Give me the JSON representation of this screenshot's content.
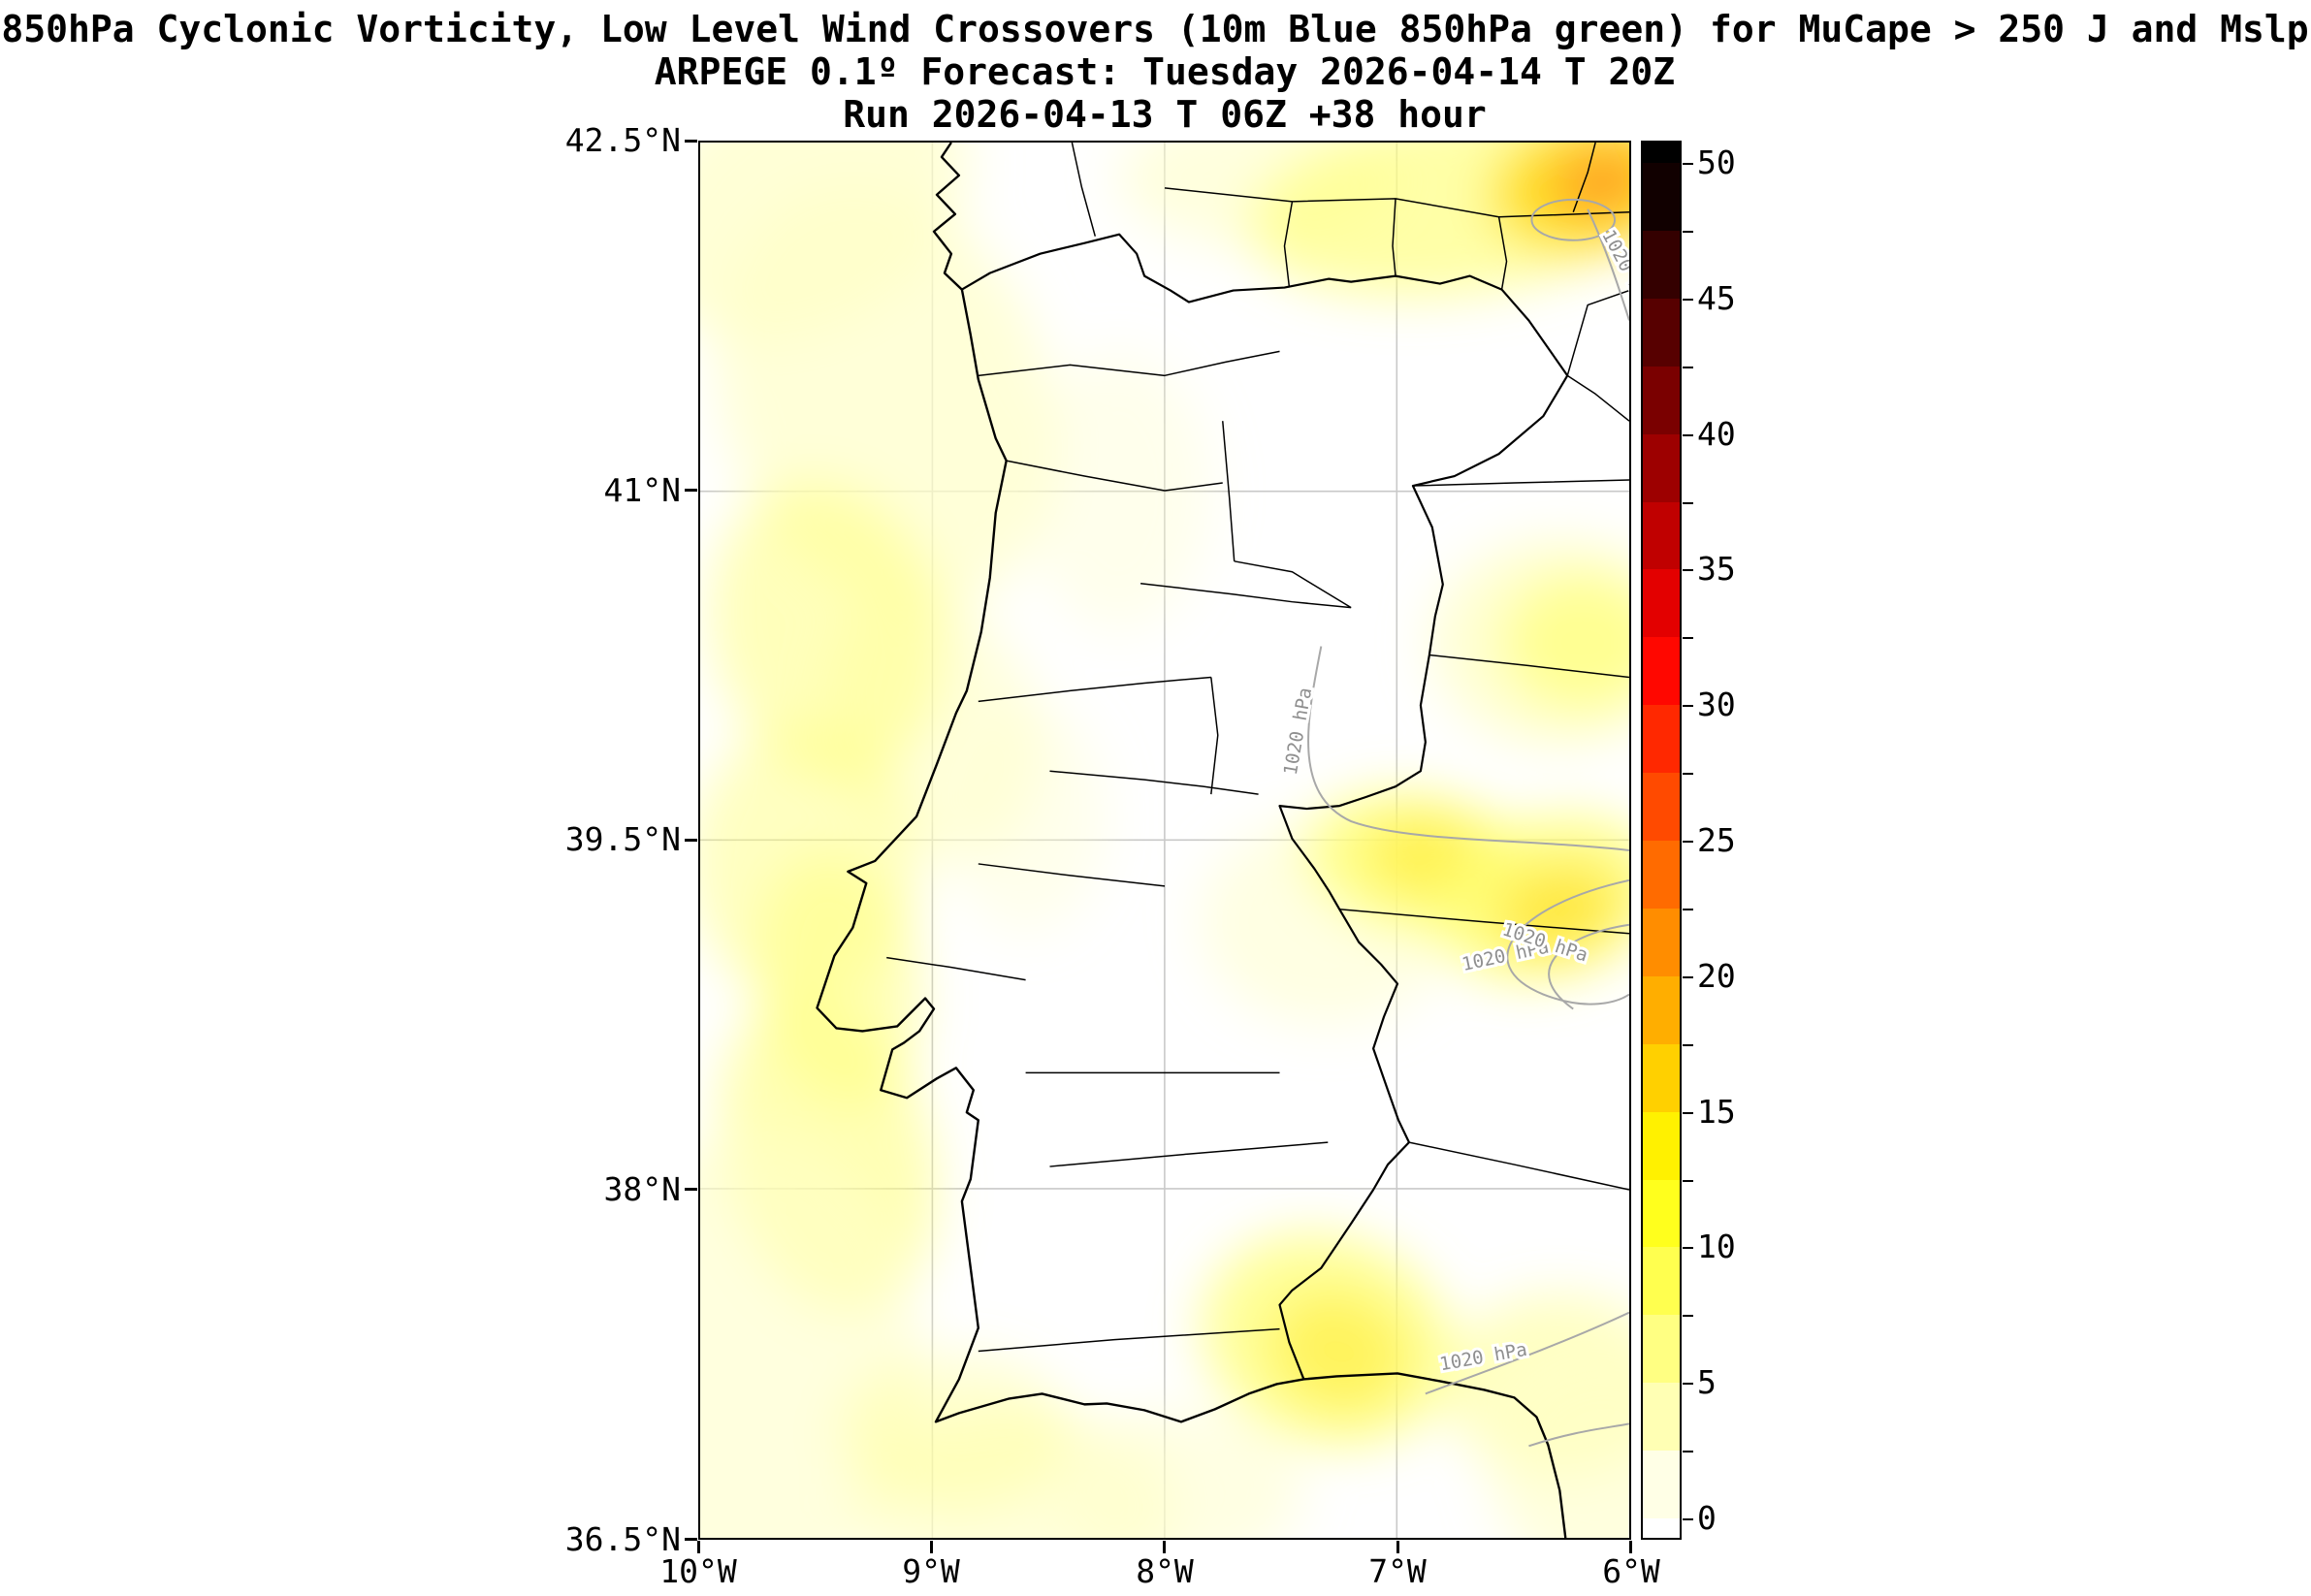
{
  "title": {
    "line1": "850hPa Cyclonic Vorticity, Low Level Wind Crossovers (10m Blue 850hPa green) for MuCape > 250 J and Mslp",
    "line2": "ARPEGE 0.1º Forecast: Tuesday 2026-04-14 T 20Z",
    "line3": "Run 2026-04-13 T 06Z +38 hour"
  },
  "axes": {
    "y_ticks": [
      "42.5°N",
      "41°N",
      "39.5°N",
      "38°N",
      "36.5°N"
    ],
    "x_ticks": [
      "10°W",
      "9°W",
      "8°W",
      "7°W",
      "6°W"
    ]
  },
  "colorbar": {
    "tick_labels": [
      "50",
      "45",
      "40",
      "35",
      "30",
      "25",
      "20",
      "15",
      "10",
      "5",
      "0"
    ],
    "range": [
      0,
      50
    ],
    "band_step": 2.5,
    "over_color": "#000000",
    "under_color": "#ffffff",
    "band_colors_top_to_bottom": [
      "#110000",
      "#340000",
      "#570000",
      "#7a0000",
      "#9d0000",
      "#c00000",
      "#e30000",
      "#ff0700",
      "#ff2800",
      "#ff4a00",
      "#ff6b00",
      "#ff8d00",
      "#ffae00",
      "#ffd000",
      "#fff100",
      "#ffff1d",
      "#ffff4f",
      "#ffff82",
      "#ffffb4",
      "#ffffe6"
    ]
  },
  "contours": {
    "value_hpa": 1020,
    "color": "#a8a8a8",
    "labels": [
      {
        "text": "1020 hPa"
      },
      {
        "text": "1020 hPa"
      },
      {
        "text": "1020 hPa"
      },
      {
        "text": "1020 hPa"
      },
      {
        "text": "1020 hPa"
      }
    ]
  },
  "shading": {
    "palette": {
      "pale": "#ffffc8",
      "yellow": "#ffff78",
      "bright": "#ffee44",
      "gold": "#ffd700",
      "orange": "#ff9a28"
    },
    "blobs": [
      {
        "lon": -9.55,
        "lat": 42.25,
        "rx": 0.75,
        "ry": 0.55,
        "rot": -30,
        "c": "pale",
        "o": 0.75
      },
      {
        "lon": -9.2,
        "lat": 41.4,
        "rx": 0.7,
        "ry": 0.95,
        "rot": -20,
        "c": "pale",
        "o": 0.7
      },
      {
        "lon": -9.0,
        "lat": 40.0,
        "rx": 0.45,
        "ry": 0.6,
        "rot": -20,
        "c": "pale",
        "o": 0.6
      },
      {
        "lon": -9.45,
        "lat": 40.4,
        "rx": 0.5,
        "ry": 0.65,
        "rot": -15,
        "c": "yellow",
        "o": 0.5
      },
      {
        "lon": -9.55,
        "lat": 39.4,
        "rx": 0.5,
        "ry": 0.6,
        "rot": 0,
        "c": "yellow",
        "o": 0.45
      },
      {
        "lon": -9.4,
        "lat": 38.9,
        "rx": 0.35,
        "ry": 0.55,
        "rot": -10,
        "c": "yellow",
        "o": 0.5
      },
      {
        "lon": -9.45,
        "lat": 38.15,
        "rx": 0.45,
        "ry": 0.7,
        "rot": -15,
        "c": "yellow",
        "o": 0.55
      },
      {
        "lon": -9.85,
        "lat": 37.2,
        "rx": 0.8,
        "ry": 1.0,
        "rot": 0,
        "c": "pale",
        "o": 0.6
      },
      {
        "lon": -8.65,
        "lat": 36.62,
        "rx": 0.7,
        "ry": 0.45,
        "rot": 0,
        "c": "pale",
        "o": 0.65
      },
      {
        "lon": -8.9,
        "lat": 36.95,
        "rx": 0.5,
        "ry": 0.35,
        "rot": 0,
        "c": "yellow",
        "o": 0.3
      },
      {
        "lon": -7.6,
        "lat": 42.35,
        "rx": 0.6,
        "ry": 0.3,
        "rot": 0,
        "c": "pale",
        "o": 0.6
      },
      {
        "lon": -6.7,
        "lat": 42.25,
        "rx": 0.95,
        "ry": 0.4,
        "rot": -8,
        "c": "yellow",
        "o": 0.65
      },
      {
        "lon": -6.15,
        "lat": 42.32,
        "rx": 0.45,
        "ry": 0.28,
        "rot": -10,
        "c": "gold",
        "o": 0.8
      },
      {
        "lon": -6.12,
        "lat": 42.33,
        "rx": 0.22,
        "ry": 0.14,
        "rot": -10,
        "c": "orange",
        "o": 0.9
      },
      {
        "lon": -6.3,
        "lat": 40.35,
        "rx": 0.55,
        "ry": 0.45,
        "rot": 0,
        "c": "pale",
        "o": 0.8
      },
      {
        "lon": -6.2,
        "lat": 40.35,
        "rx": 0.35,
        "ry": 0.3,
        "rot": 0,
        "c": "yellow",
        "o": 0.7
      },
      {
        "lon": -7.3,
        "lat": 39.15,
        "rx": 0.55,
        "ry": 0.45,
        "rot": 0,
        "c": "pale",
        "o": 0.5
      },
      {
        "lon": -6.9,
        "lat": 39.4,
        "rx": 0.5,
        "ry": 0.3,
        "rot": 10,
        "c": "yellow",
        "o": 0.8
      },
      {
        "lon": -6.85,
        "lat": 39.42,
        "rx": 0.28,
        "ry": 0.17,
        "rot": 10,
        "c": "bright",
        "o": 0.85
      },
      {
        "lon": -6.35,
        "lat": 39.25,
        "rx": 0.5,
        "ry": 0.35,
        "rot": -15,
        "c": "yellow",
        "o": 0.8
      },
      {
        "lon": -6.3,
        "lat": 39.2,
        "rx": 0.28,
        "ry": 0.2,
        "rot": -15,
        "c": "gold",
        "o": 0.55
      },
      {
        "lon": -7.3,
        "lat": 37.35,
        "rx": 0.55,
        "ry": 0.45,
        "rot": 20,
        "c": "yellow",
        "o": 0.75
      },
      {
        "lon": -7.25,
        "lat": 37.3,
        "rx": 0.3,
        "ry": 0.25,
        "rot": 20,
        "c": "bright",
        "o": 0.7
      },
      {
        "lon": -6.3,
        "lat": 37.15,
        "rx": 0.5,
        "ry": 0.4,
        "rot": 0,
        "c": "yellow",
        "o": 0.45
      },
      {
        "lon": -6.1,
        "lat": 36.8,
        "rx": 0.5,
        "ry": 0.5,
        "rot": 0,
        "c": "pale",
        "o": 0.6
      },
      {
        "lon": -7.95,
        "lat": 36.7,
        "rx": 0.55,
        "ry": 0.35,
        "rot": 0,
        "c": "pale",
        "o": 0.5
      },
      {
        "lon": -8.2,
        "lat": 41.0,
        "rx": 0.4,
        "ry": 0.6,
        "rot": 0,
        "c": "pale",
        "o": 0.35
      },
      {
        "lon": -8.6,
        "lat": 39.6,
        "rx": 0.35,
        "ry": 0.5,
        "rot": 0,
        "c": "pale",
        "o": 0.35
      }
    ]
  },
  "chart_data": {
    "type": "heatmap",
    "title": "850hPa Cyclonic Vorticity, Low Level Wind Crossovers (10m Blue 850hPa green) for MuCape > 250 J and Mslp",
    "subtitle": "ARPEGE 0.1º Forecast: Tuesday 2026-04-14 T 20Z",
    "run": "Run 2026-04-13 T 06Z +38 hour",
    "model": "ARPEGE 0.1º",
    "valid_time": "Tuesday 2026-04-14 T 20Z",
    "run_time": "2026-04-13 T 06Z",
    "lead_hours": 38,
    "x_ticks": [
      "10°W",
      "9°W",
      "8°W",
      "7°W",
      "6°W"
    ],
    "y_ticks": [
      "42.5°N",
      "41°N",
      "39.5°N",
      "38°N",
      "36.5°N"
    ],
    "xlim_deg": [
      -10,
      -6
    ],
    "ylim_deg": [
      36.5,
      42.5
    ],
    "grid": true,
    "legend_position": "right-colorbar",
    "colorbar_ticks": [
      50,
      45,
      40,
      35,
      30,
      25,
      20,
      15,
      10,
      5,
      0
    ],
    "colormap": "hot_r (white-yellow-orange-red-black)",
    "pressure_contours_hpa": [
      1020
    ],
    "vorticity_maxima": [
      {
        "lon": -6.15,
        "lat": 42.32,
        "value": 22
      },
      {
        "lon": -6.85,
        "lat": 39.42,
        "value": 14
      },
      {
        "lon": -6.3,
        "lat": 39.2,
        "value": 13
      },
      {
        "lon": -7.25,
        "lat": 37.3,
        "value": 12
      },
      {
        "lon": -6.2,
        "lat": 40.35,
        "value": 10
      },
      {
        "lon": -9.45,
        "lat": 40.4,
        "value": 8
      },
      {
        "lon": -9.4,
        "lat": 38.5,
        "value": 8
      }
    ]
  }
}
